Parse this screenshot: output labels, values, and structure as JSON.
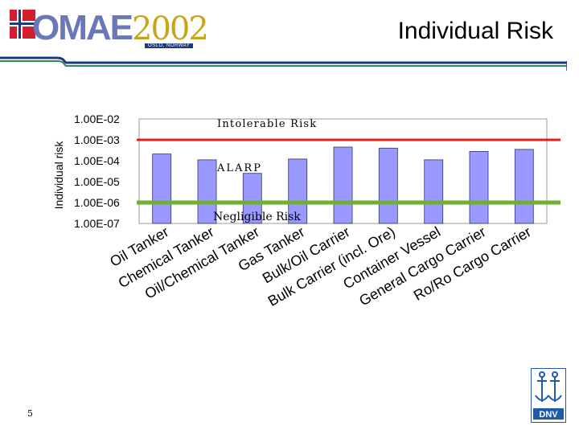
{
  "header": {
    "logo_text": "OMAE2002",
    "logo_omae": "OMAE",
    "logo_year": "2002",
    "logo_city": "OSLO, NORWAY",
    "title": "Individual Risk"
  },
  "footer": {
    "page_number": "5",
    "dnv_logo_text": "DNV"
  },
  "colors": {
    "bar_fill": "#9999ff",
    "intolerable_line": "#e02020",
    "negligible_line": "#70b030",
    "header_blue": "#1e3a7a",
    "header_green": "#2a8a5a"
  },
  "chart_data": {
    "type": "bar",
    "title": "",
    "xlabel": "",
    "ylabel": "Individual risk",
    "yscale": "log",
    "ylim": [
      1e-07,
      0.01
    ],
    "ytick_labels": [
      "1.00E-02",
      "1.00E-03",
      "1.00E-04",
      "1.00E-05",
      "1.00E-06",
      "1.00E-07"
    ],
    "categories": [
      "Oil Tanker",
      "Chemical Tanker",
      "Oil/Chemical Tanker",
      "Gas Tanker",
      "Bulk/Oil Carrier",
      "Bulk Carrier (incl. Ore)",
      "Container Vessel",
      "General Cargo Carrier",
      "Ro/Ro Cargo Carrier"
    ],
    "values": [
      0.00021,
      0.00011,
      2.5e-05,
      0.00012,
      0.00045,
      0.0004,
      0.00011,
      0.00028,
      0.00035
    ],
    "grid": false,
    "annotations": [
      {
        "text": "Intolerable Risk",
        "y": 0.001
      },
      {
        "text": "ALARP",
        "y": 3.2e-05
      },
      {
        "text": "Negligible Risk",
        "y": 1e-06
      }
    ],
    "reference_lines": [
      {
        "name": "Intolerable Risk",
        "y": 0.001
      },
      {
        "name": "Negligible Risk",
        "y": 1e-06
      }
    ]
  }
}
